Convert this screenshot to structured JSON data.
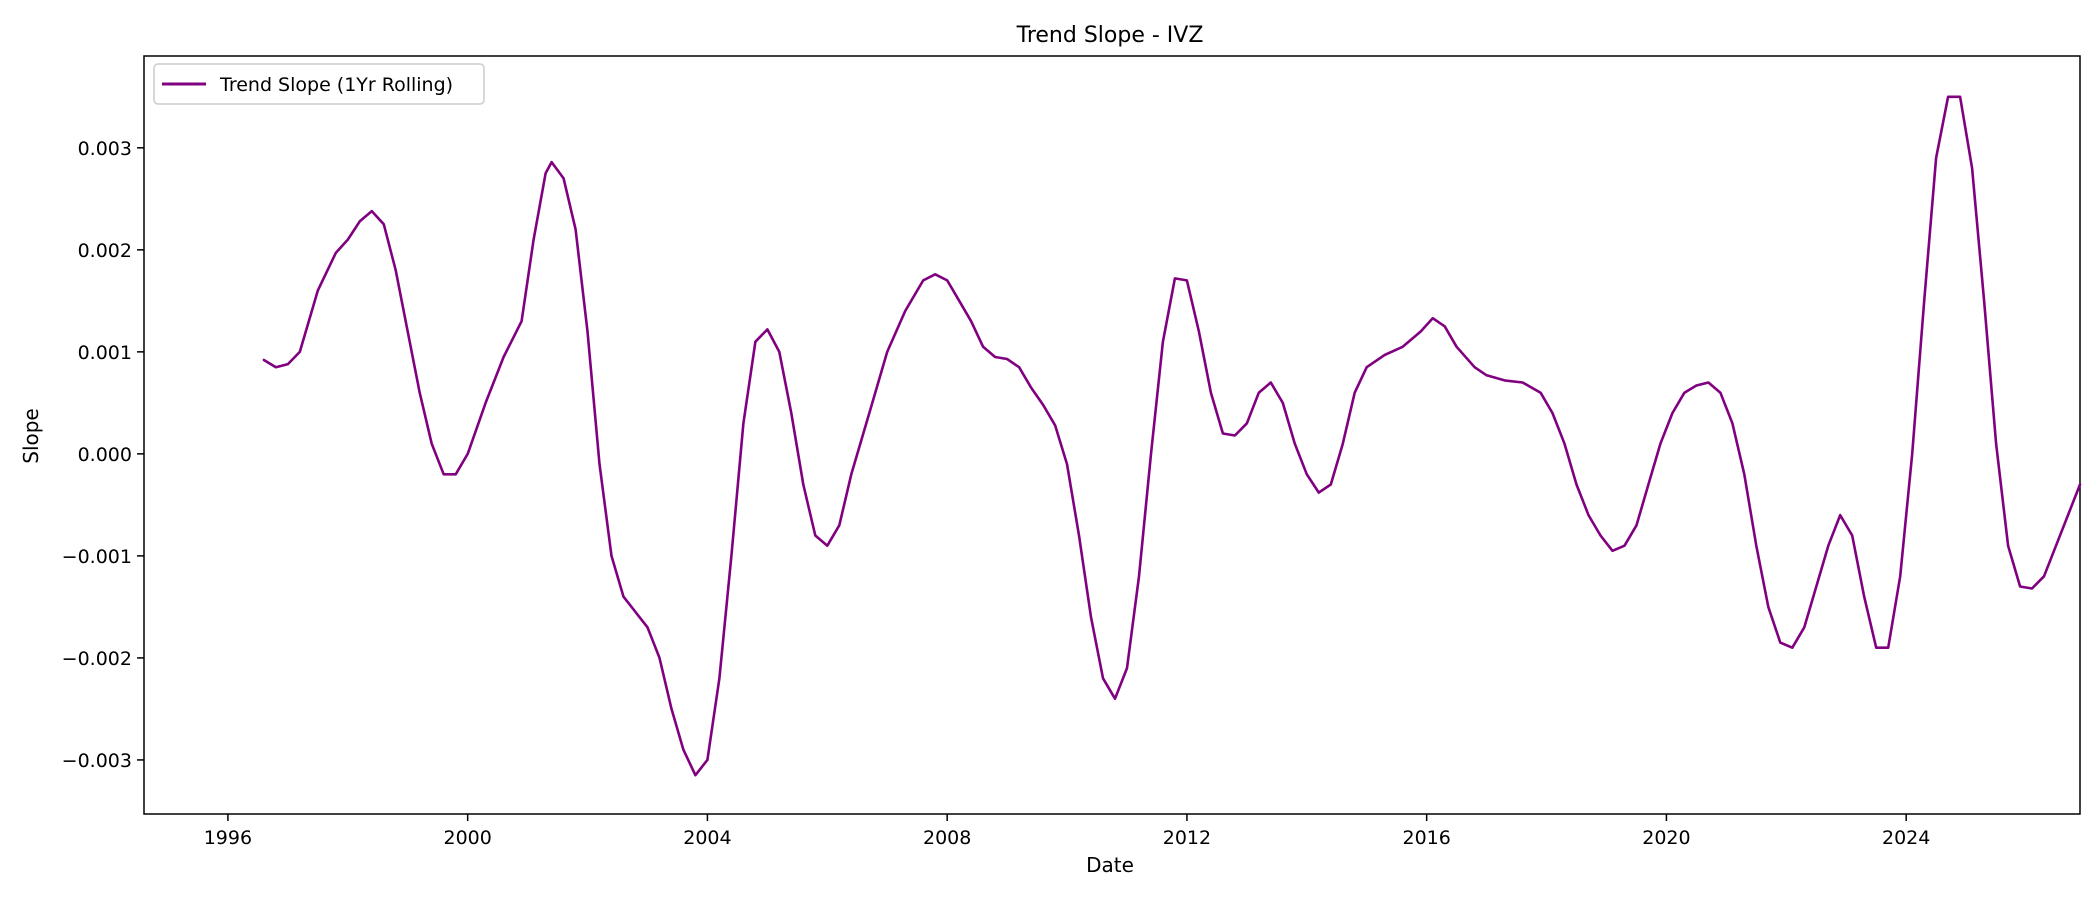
{
  "chart_data": {
    "type": "line",
    "title": "Trend Slope - IVZ",
    "xlabel": "Date",
    "ylabel": "Slope",
    "x_ticks": [
      "1996",
      "2000",
      "2004",
      "2008",
      "2012",
      "2016",
      "2020",
      "2024"
    ],
    "y_ticks": [
      "0.003",
      "0.002",
      "0.001",
      "0.000",
      "−0.001",
      "−0.002",
      "−0.003"
    ],
    "x_tick_values": [
      1996,
      2000,
      2004,
      2008,
      2012,
      2016,
      2020,
      2024
    ],
    "y_tick_values": [
      0.003,
      0.002,
      0.001,
      0.0,
      -0.001,
      -0.002,
      -0.003
    ],
    "xlim": [
      1994.6,
      2026.9
    ],
    "ylim": [
      -0.00353,
      0.0039
    ],
    "grid": false,
    "legend_position": "top-left",
    "series": [
      {
        "name": "Trend Slope (1Yr Rolling)",
        "color": "#800080",
        "points": [
          [
            1996.6,
            0.00092
          ],
          [
            1996.8,
            0.00085
          ],
          [
            1997.0,
            0.00088
          ],
          [
            1997.2,
            0.001
          ],
          [
            1997.5,
            0.0016
          ],
          [
            1997.8,
            0.00197
          ],
          [
            1998.0,
            0.0021
          ],
          [
            1998.2,
            0.00228
          ],
          [
            1998.4,
            0.00238
          ],
          [
            1998.6,
            0.00225
          ],
          [
            1998.8,
            0.0018
          ],
          [
            1999.0,
            0.0012
          ],
          [
            1999.2,
            0.0006
          ],
          [
            1999.4,
            0.0001
          ],
          [
            1999.6,
            -0.0002
          ],
          [
            1999.8,
            -0.0002
          ],
          [
            2000.0,
            0.0
          ],
          [
            2000.3,
            0.0005
          ],
          [
            2000.6,
            0.00095
          ],
          [
            2000.9,
            0.0013
          ],
          [
            2001.1,
            0.0021
          ],
          [
            2001.3,
            0.00275
          ],
          [
            2001.4,
            0.00286
          ],
          [
            2001.6,
            0.0027
          ],
          [
            2001.8,
            0.0022
          ],
          [
            2002.0,
            0.0012
          ],
          [
            2002.2,
            -0.0001
          ],
          [
            2002.4,
            -0.001
          ],
          [
            2002.6,
            -0.0014
          ],
          [
            2002.8,
            -0.00155
          ],
          [
            2003.0,
            -0.0017
          ],
          [
            2003.2,
            -0.002
          ],
          [
            2003.4,
            -0.0025
          ],
          [
            2003.6,
            -0.0029
          ],
          [
            2003.8,
            -0.00315
          ],
          [
            2004.0,
            -0.003
          ],
          [
            2004.2,
            -0.0022
          ],
          [
            2004.4,
            -0.001
          ],
          [
            2004.6,
            0.0003
          ],
          [
            2004.8,
            0.0011
          ],
          [
            2005.0,
            0.00122
          ],
          [
            2005.2,
            0.001
          ],
          [
            2005.4,
            0.0004
          ],
          [
            2005.6,
            -0.0003
          ],
          [
            2005.8,
            -0.0008
          ],
          [
            2006.0,
            -0.0009
          ],
          [
            2006.2,
            -0.0007
          ],
          [
            2006.4,
            -0.0002
          ],
          [
            2006.7,
            0.0004
          ],
          [
            2007.0,
            0.001
          ],
          [
            2007.3,
            0.0014
          ],
          [
            2007.6,
            0.0017
          ],
          [
            2007.8,
            0.00176
          ],
          [
            2008.0,
            0.0017
          ],
          [
            2008.2,
            0.0015
          ],
          [
            2008.4,
            0.0013
          ],
          [
            2008.6,
            0.00105
          ],
          [
            2008.8,
            0.00095
          ],
          [
            2009.0,
            0.00093
          ],
          [
            2009.2,
            0.00085
          ],
          [
            2009.4,
            0.00065
          ],
          [
            2009.6,
            0.00048
          ],
          [
            2009.8,
            0.00028
          ],
          [
            2010.0,
            -0.0001
          ],
          [
            2010.2,
            -0.0008
          ],
          [
            2010.4,
            -0.0016
          ],
          [
            2010.6,
            -0.0022
          ],
          [
            2010.8,
            -0.0024
          ],
          [
            2011.0,
            -0.0021
          ],
          [
            2011.2,
            -0.0012
          ],
          [
            2011.4,
            0.0
          ],
          [
            2011.6,
            0.0011
          ],
          [
            2011.8,
            0.00172
          ],
          [
            2012.0,
            0.0017
          ],
          [
            2012.2,
            0.0012
          ],
          [
            2012.4,
            0.0006
          ],
          [
            2012.6,
            0.0002
          ],
          [
            2012.8,
            0.00018
          ],
          [
            2013.0,
            0.0003
          ],
          [
            2013.2,
            0.0006
          ],
          [
            2013.4,
            0.0007
          ],
          [
            2013.6,
            0.0005
          ],
          [
            2013.8,
            0.0001
          ],
          [
            2014.0,
            -0.0002
          ],
          [
            2014.2,
            -0.00038
          ],
          [
            2014.4,
            -0.0003
          ],
          [
            2014.6,
            0.0001
          ],
          [
            2014.8,
            0.0006
          ],
          [
            2015.0,
            0.00085
          ],
          [
            2015.3,
            0.00097
          ],
          [
            2015.6,
            0.00105
          ],
          [
            2015.9,
            0.0012
          ],
          [
            2016.1,
            0.00133
          ],
          [
            2016.3,
            0.00125
          ],
          [
            2016.5,
            0.00105
          ],
          [
            2016.8,
            0.00085
          ],
          [
            2017.0,
            0.00077
          ],
          [
            2017.3,
            0.00072
          ],
          [
            2017.6,
            0.0007
          ],
          [
            2017.9,
            0.0006
          ],
          [
            2018.1,
            0.0004
          ],
          [
            2018.3,
            0.0001
          ],
          [
            2018.5,
            -0.0003
          ],
          [
            2018.7,
            -0.0006
          ],
          [
            2018.9,
            -0.0008
          ],
          [
            2019.1,
            -0.00095
          ],
          [
            2019.3,
            -0.0009
          ],
          [
            2019.5,
            -0.0007
          ],
          [
            2019.7,
            -0.0003
          ],
          [
            2019.9,
            0.0001
          ],
          [
            2020.1,
            0.0004
          ],
          [
            2020.3,
            0.0006
          ],
          [
            2020.5,
            0.00067
          ],
          [
            2020.7,
            0.0007
          ],
          [
            2020.9,
            0.0006
          ],
          [
            2021.1,
            0.0003
          ],
          [
            2021.3,
            -0.0002
          ],
          [
            2021.5,
            -0.0009
          ],
          [
            2021.7,
            -0.0015
          ],
          [
            2021.9,
            -0.00185
          ],
          [
            2022.1,
            -0.0019
          ],
          [
            2022.3,
            -0.0017
          ],
          [
            2022.5,
            -0.0013
          ],
          [
            2022.7,
            -0.0009
          ],
          [
            2022.9,
            -0.0006
          ],
          [
            2023.1,
            -0.0008
          ],
          [
            2023.3,
            -0.0014
          ],
          [
            2023.5,
            -0.0019
          ],
          [
            2023.7,
            -0.0019
          ],
          [
            2023.9,
            -0.0012
          ],
          [
            2024.1,
            0.0
          ],
          [
            2024.3,
            0.0015
          ],
          [
            2024.5,
            0.0029
          ],
          [
            2024.7,
            0.0035
          ],
          [
            2024.9,
            0.0035
          ],
          [
            2025.1,
            0.0028
          ],
          [
            2025.3,
            0.0015
          ],
          [
            2025.5,
            0.0001
          ],
          [
            2025.7,
            -0.0009
          ],
          [
            2025.9,
            -0.0013
          ],
          [
            2026.1,
            -0.00132
          ],
          [
            2026.3,
            -0.0012
          ],
          [
            2026.5,
            -0.0009
          ],
          [
            2026.7,
            -0.0006
          ],
          [
            2026.9,
            -0.0003
          ]
        ]
      }
    ]
  }
}
